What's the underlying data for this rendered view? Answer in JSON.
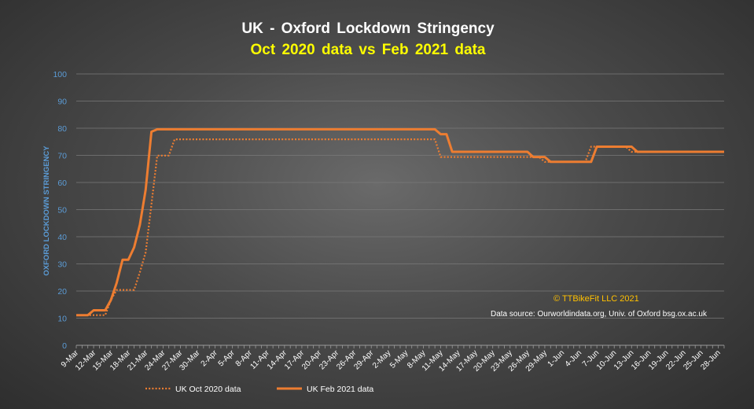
{
  "title": "UK -  Oxford Lockdown Stringency",
  "subtitle": "Oct 2020 data vs Feb 2021 data",
  "copyright": "© TTBikeFit LLC 2021",
  "source": "Data source: Ourworldindata.org, Univ. of Oxford bsg.ox.ac.uk",
  "colors": {
    "series": "#ed7d31",
    "ylabel": "#5b9bd5",
    "title": "#ffffff",
    "subtitle": "#ffff00",
    "copyright": "#ffc000"
  },
  "chart_data": {
    "type": "line",
    "ylabel": "OXFORD LOCKDOWN STRINGENCY",
    "xlabel": "",
    "ylim": [
      0,
      100
    ],
    "yticks": [
      0,
      10,
      20,
      30,
      40,
      50,
      60,
      70,
      80,
      90,
      100
    ],
    "xlim": [
      "9-Mar",
      "29-Jun"
    ],
    "x_tick_labels": [
      "9-Mar",
      "12-Mar",
      "15-Mar",
      "18-Mar",
      "21-Mar",
      "24-Mar",
      "27-Mar",
      "30-Mar",
      "2-Apr",
      "5-Apr",
      "8-Apr",
      "11-Apr",
      "14-Apr",
      "17-Apr",
      "20-Apr",
      "23-Apr",
      "26-Apr",
      "29-Apr",
      "2-May",
      "5-May",
      "8-May",
      "11-May",
      "14-May",
      "17-May",
      "20-May",
      "23-May",
      "26-May",
      "29-May",
      "1-Jun",
      "4-Jun",
      "7-Jun",
      "10-Jun",
      "13-Jun",
      "16-Jun",
      "19-Jun",
      "22-Jun",
      "25-Jun",
      "28-Jun"
    ],
    "grid": true,
    "legend": "bottom",
    "series": [
      {
        "name": "UK Oct 2020 data",
        "style": "dotted",
        "points": [
          [
            "9-Mar",
            11.1
          ],
          [
            "12-Mar",
            11.1
          ],
          [
            "13-Mar",
            11.1
          ],
          [
            "14-Mar",
            11.1
          ],
          [
            "15-Mar",
            16.7
          ],
          [
            "16-Mar",
            20.4
          ],
          [
            "17-Mar",
            20.4
          ],
          [
            "18-Mar",
            20.4
          ],
          [
            "19-Mar",
            20.4
          ],
          [
            "20-Mar",
            26.9
          ],
          [
            "21-Mar",
            34.3
          ],
          [
            "22-Mar",
            51.9
          ],
          [
            "23-Mar",
            69.9
          ],
          [
            "24-Mar",
            69.9
          ],
          [
            "25-Mar",
            69.9
          ],
          [
            "26-Mar",
            75.9
          ],
          [
            "9-May",
            75.9
          ],
          [
            "10-May",
            75.9
          ],
          [
            "11-May",
            69.4
          ],
          [
            "27-May",
            69.4
          ],
          [
            "28-May",
            69.4
          ],
          [
            "29-May",
            67.6
          ],
          [
            "4-Jun",
            67.6
          ],
          [
            "5-Jun",
            67.6
          ],
          [
            "6-Jun",
            73.2
          ],
          [
            "12-Jun",
            73.2
          ],
          [
            "13-Jun",
            71.3
          ],
          [
            "29-Jun",
            71.3
          ]
        ]
      },
      {
        "name": "UK Feb 2021 data",
        "style": "solid",
        "points": [
          [
            "9-Mar",
            11.1
          ],
          [
            "11-Mar",
            11.1
          ],
          [
            "12-Mar",
            12.9
          ],
          [
            "13-Mar",
            12.9
          ],
          [
            "14-Mar",
            12.9
          ],
          [
            "15-Mar",
            16.7
          ],
          [
            "16-Mar",
            23.1
          ],
          [
            "17-Mar",
            31.5
          ],
          [
            "18-Mar",
            31.5
          ],
          [
            "19-Mar",
            36.1
          ],
          [
            "20-Mar",
            44.4
          ],
          [
            "21-Mar",
            57.4
          ],
          [
            "22-Mar",
            78.7
          ],
          [
            "23-Mar",
            79.6
          ],
          [
            "24-Mar",
            79.6
          ],
          [
            "10-May",
            79.6
          ],
          [
            "11-May",
            77.8
          ],
          [
            "12-May",
            77.8
          ],
          [
            "13-May",
            71.3
          ],
          [
            "26-May",
            71.3
          ],
          [
            "27-May",
            69.4
          ],
          [
            "29-May",
            69.4
          ],
          [
            "30-May",
            67.6
          ],
          [
            "6-Jun",
            67.6
          ],
          [
            "7-Jun",
            73.2
          ],
          [
            "13-Jun",
            73.2
          ],
          [
            "14-Jun",
            71.3
          ],
          [
            "29-Jun",
            71.3
          ]
        ]
      }
    ]
  }
}
